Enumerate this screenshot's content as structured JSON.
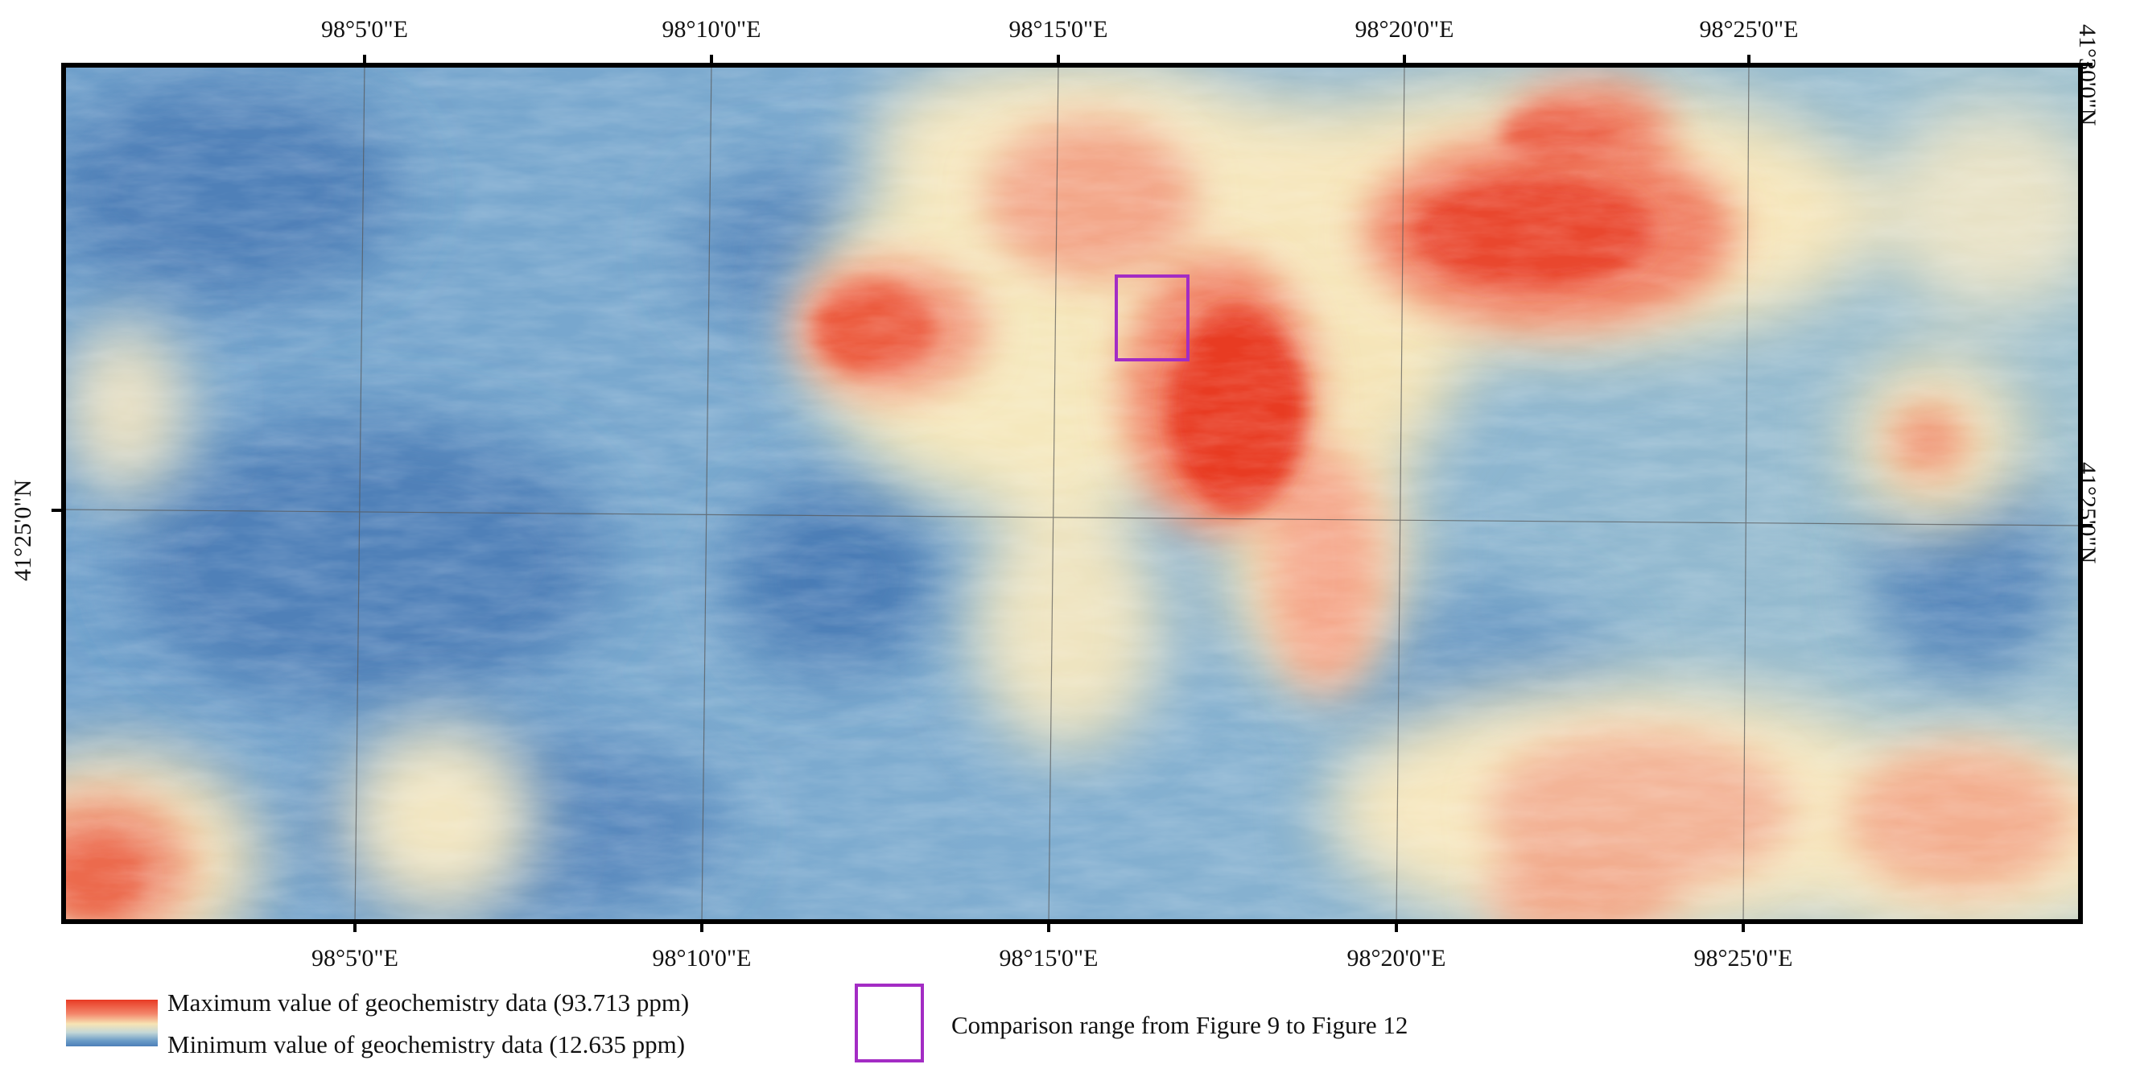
{
  "map": {
    "longitude_labels": [
      "98°5'0\"E",
      "98°10'0\"E",
      "98°15'0\"E",
      "98°20'0\"E",
      "98°25'0\"E"
    ],
    "latitude_labels": [
      "41°25'0\"N",
      "41°30'0\"N"
    ],
    "colors": {
      "high": "#e83a24",
      "mid_high": "#f3856a",
      "mid": "#f7e4b4",
      "low": "#6b9cc7",
      "lowest": "#4d7fb8",
      "comparison_box": "#a32cc4",
      "frame": "#000000"
    }
  },
  "legend": {
    "max_label": "Maximum value of geochemistry data (93.713 ppm)",
    "min_label": "Minimum value of geochemistry data (12.635 ppm)",
    "max_value_ppm": 93.713,
    "min_value_ppm": 12.635,
    "comparison_label": "Comparison range from Figure 9 to Figure 12"
  }
}
